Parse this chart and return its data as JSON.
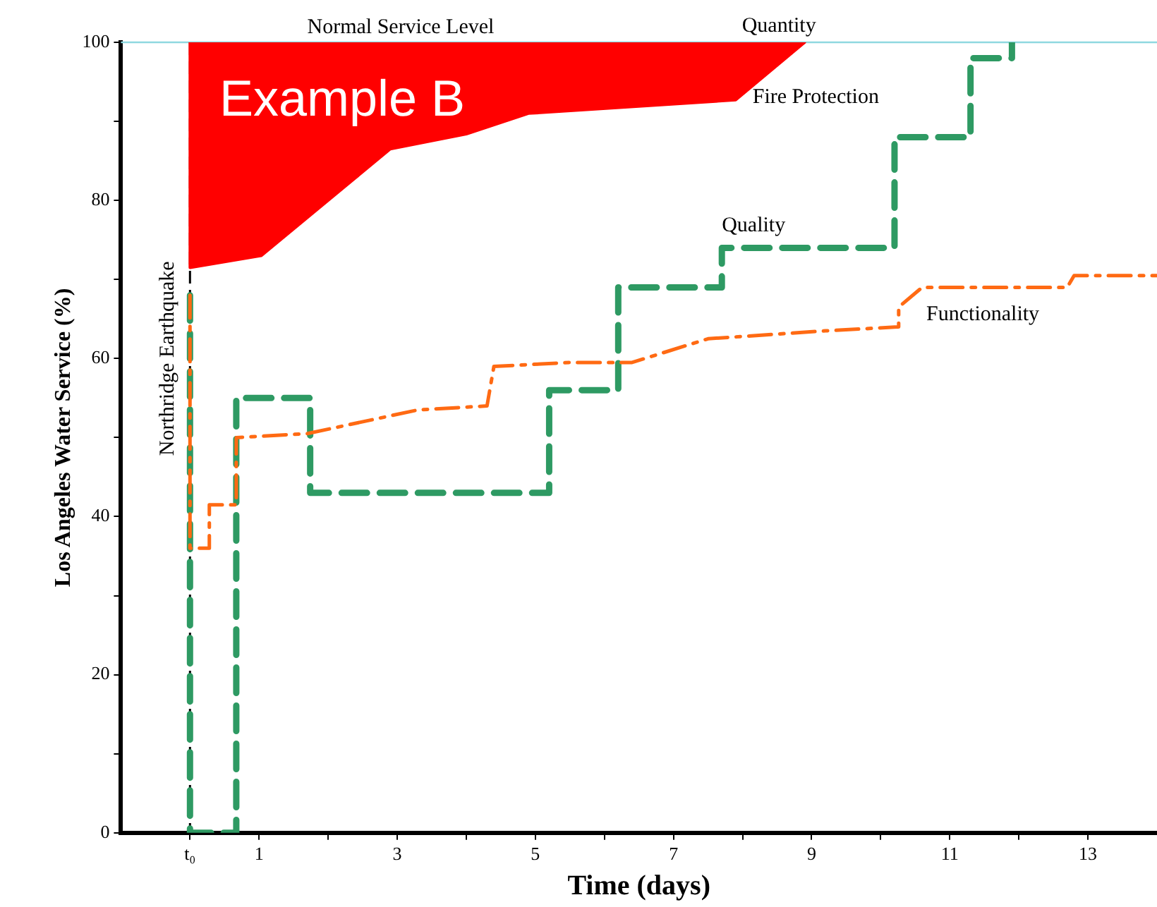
{
  "chart_data": {
    "type": "line",
    "xlabel": "Time (days)",
    "ylabel": "Los Angeles Water Service (%)",
    "xlim": [
      -1,
      14
    ],
    "ylim": [
      0,
      100
    ],
    "xticks": [
      {
        "value": 0,
        "label": "t₀"
      },
      1,
      {
        "value": 2,
        "label": null
      },
      3,
      {
        "value": 4,
        "label": null
      },
      5,
      {
        "value": 6,
        "label": null
      },
      7,
      {
        "value": 8,
        "label": null
      },
      9,
      {
        "value": 10,
        "label": null
      },
      11,
      {
        "value": 12,
        "label": null
      },
      13
    ],
    "yticks": [
      0,
      {
        "value": 10,
        "label": null
      },
      20,
      {
        "value": 30,
        "label": null
      },
      40,
      {
        "value": 50,
        "label": null
      },
      60,
      {
        "value": 70,
        "label": null
      },
      80,
      {
        "value": 90,
        "label": null
      },
      100
    ],
    "grid": false,
    "legend": false,
    "series": [
      {
        "name": "Fire Protection",
        "type": "area",
        "color": "#ff0000",
        "x": [
          0,
          0,
          1.03,
          2.9,
          4.0,
          4.9,
          7.9,
          8.9
        ],
        "values": [
          100,
          71.5,
          73,
          86.5,
          88.4,
          91,
          92.7,
          100
        ]
      },
      {
        "name": "Quality",
        "type": "step",
        "color": "#2e9a63",
        "line_style": "dashed",
        "x": [
          0,
          0,
          0.67,
          1.74,
          5.2,
          6.2,
          7.7,
          10.2,
          11.3,
          11.9
        ],
        "values": [
          68,
          0,
          55,
          43,
          56,
          69,
          74,
          88,
          98,
          100
        ]
      },
      {
        "name": "Functionality",
        "type": "line",
        "color": "#ff6a13",
        "line_style": "dashed",
        "x": [
          0,
          0,
          0.28,
          0.28,
          0.67,
          0.67,
          1.7,
          3.3,
          4.3,
          4.4,
          5.5,
          6.4,
          7.5,
          9.2,
          10.26,
          10.26,
          10.6,
          12.7,
          12.8,
          14
        ],
        "values": [
          68,
          36,
          36,
          41.5,
          41.5,
          50,
          50.5,
          53.5,
          54,
          59,
          59.5,
          59.5,
          62.5,
          63.5,
          64,
          66.5,
          69,
          69,
          70.5,
          70.5
        ]
      }
    ],
    "ref_lines": [
      {
        "axis": "y",
        "value": 100,
        "label": "Normal Service Level",
        "color": "#8fd8e0",
        "line_style": "solid"
      },
      {
        "axis": "x",
        "value": 0,
        "label": "Northridge Earthquake",
        "color": "#000000",
        "line_style": "dashed"
      }
    ],
    "annotations": [
      "Example B",
      {
        "text": "Quantity",
        "x": 8.9,
        "y": 100
      }
    ]
  }
}
